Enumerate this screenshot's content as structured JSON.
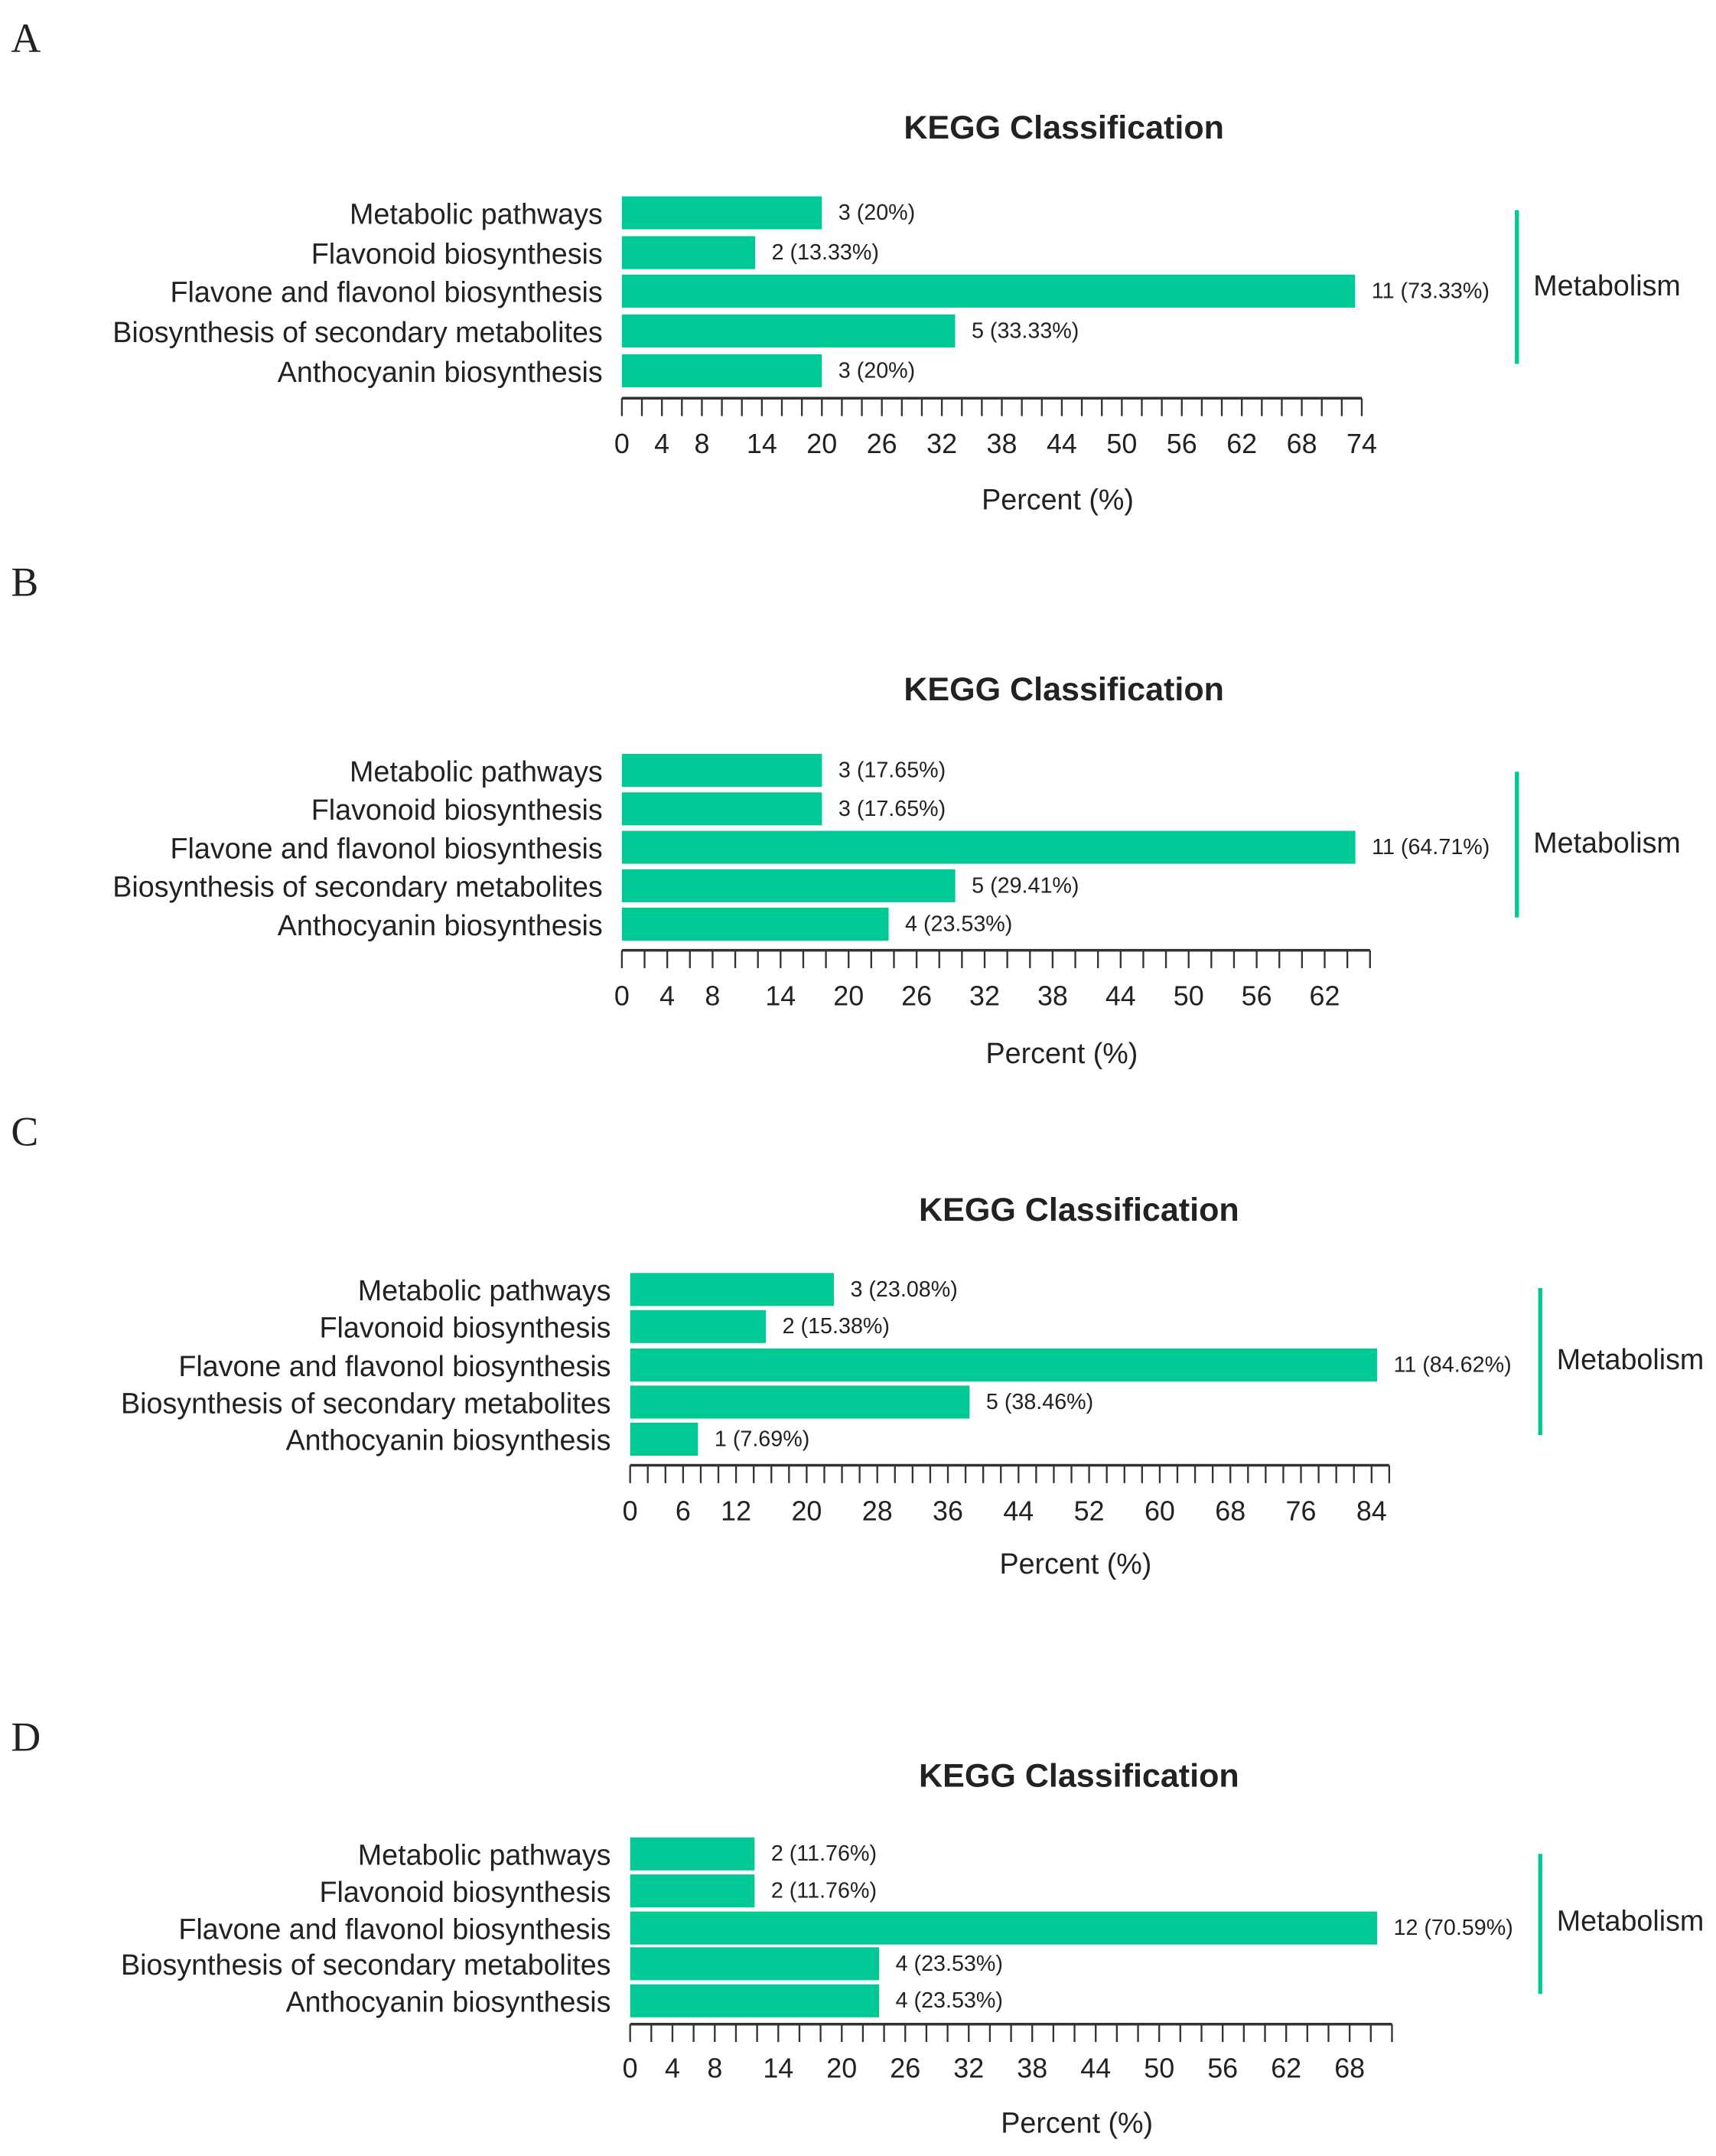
{
  "colors": {
    "bar": "#00c996",
    "axis": "#333333",
    "bracket": "#00c996"
  },
  "chart_data": [
    {
      "panel": "A",
      "type": "bar",
      "orientation": "horizontal",
      "title": "KEGG Classification",
      "xlabel": "Percent (%)",
      "group": "Metabolism",
      "categories": [
        "Metabolic pathways",
        "Flavonoid biosynthesis",
        "Flavone and flavonol biosynthesis",
        "Biosynthesis of secondary metabolites",
        "Anthocyanin biosynthesis"
      ],
      "counts": [
        3,
        2,
        11,
        5,
        3
      ],
      "values": [
        20,
        13.33,
        73.33,
        33.33,
        20
      ],
      "labels": [
        "3 (20%)",
        "2 (13.33%)",
        "11 (73.33%)",
        "5 (33.33%)",
        "3 (20%)"
      ],
      "xticks": [
        0,
        4,
        8,
        14,
        20,
        26,
        32,
        38,
        44,
        50,
        56,
        62,
        68,
        74
      ],
      "xlim": [
        0,
        74
      ]
    },
    {
      "panel": "B",
      "type": "bar",
      "orientation": "horizontal",
      "title": "KEGG Classification",
      "xlabel": "Percent (%)",
      "group": "Metabolism",
      "categories": [
        "Metabolic pathways",
        "Flavonoid biosynthesis",
        "Flavone and flavonol biosynthesis",
        "Biosynthesis of secondary metabolites",
        "Anthocyanin biosynthesis"
      ],
      "counts": [
        3,
        3,
        11,
        5,
        4
      ],
      "values": [
        17.65,
        17.65,
        64.71,
        29.41,
        23.53
      ],
      "labels": [
        "3 (17.65%)",
        "3 (17.65%)",
        "11 (64.71%)",
        "5 (29.41%)",
        "4 (23.53%)"
      ],
      "xticks": [
        0,
        4,
        8,
        14,
        20,
        26,
        32,
        38,
        44,
        50,
        56,
        62
      ],
      "xlim": [
        0,
        66
      ]
    },
    {
      "panel": "C",
      "type": "bar",
      "orientation": "horizontal",
      "title": "KEGG Classification",
      "xlabel": "Percent (%)",
      "group": "Metabolism",
      "categories": [
        "Metabolic pathways",
        "Flavonoid biosynthesis",
        "Flavone and flavonol biosynthesis",
        "Biosynthesis of secondary metabolites",
        "Anthocyanin biosynthesis"
      ],
      "counts": [
        3,
        2,
        11,
        5,
        1
      ],
      "values": [
        23.08,
        15.38,
        84.62,
        38.46,
        7.69
      ],
      "labels": [
        "3 (23.08%)",
        "2 (15.38%)",
        "11 (84.62%)",
        "5 (38.46%)",
        "1 (7.69%)"
      ],
      "xticks": [
        0,
        6,
        12,
        20,
        28,
        36,
        44,
        52,
        60,
        68,
        76,
        84
      ],
      "xlim": [
        0,
        86
      ]
    },
    {
      "panel": "D",
      "type": "bar",
      "orientation": "horizontal",
      "title": "KEGG Classification",
      "xlabel": "Percent (%)",
      "group": "Metabolism",
      "categories": [
        "Metabolic pathways",
        "Flavonoid biosynthesis",
        "Flavone and flavonol biosynthesis",
        "Biosynthesis of secondary metabolites",
        "Anthocyanin biosynthesis"
      ],
      "counts": [
        2,
        2,
        12,
        4,
        4
      ],
      "values": [
        11.76,
        11.76,
        70.59,
        23.53,
        23.53
      ],
      "labels": [
        "2 (11.76%)",
        "2 (11.76%)",
        "12 (70.59%)",
        "4 (23.53%)",
        "4 (23.53%)"
      ],
      "xticks": [
        0,
        4,
        8,
        14,
        20,
        26,
        32,
        38,
        44,
        50,
        56,
        62,
        68
      ],
      "xlim": [
        0,
        72
      ]
    }
  ]
}
